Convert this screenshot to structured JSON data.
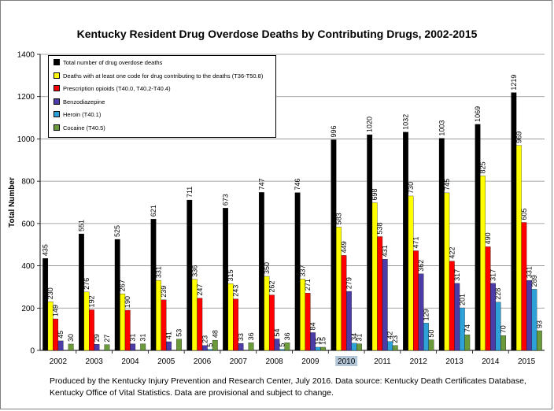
{
  "chart_data": {
    "type": "bar",
    "title": "Kentucky Resident Drug Overdose Deaths by Contributing Drugs, 2002-2015",
    "xlabel": "",
    "ylabel": "Total Number",
    "ylim": [
      0,
      1400
    ],
    "yticks": [
      0,
      200,
      400,
      600,
      800,
      1000,
      1200,
      1400
    ],
    "grid": "horizontal",
    "legend_position": "top-left",
    "highlighted_category": "2010",
    "categories": [
      "2002",
      "2003",
      "2004",
      "2005",
      "2006",
      "2007",
      "2008",
      "2009",
      "2010",
      "2011",
      "2012",
      "2013",
      "2014",
      "2015"
    ],
    "series": [
      {
        "name": "Total number of drug overdose deaths",
        "color": "#000000",
        "values": [
          435,
          551,
          525,
          621,
          711,
          673,
          747,
          746,
          996,
          1020,
          1032,
          1003,
          1069,
          1219
        ]
      },
      {
        "name": "Deaths with at least one code for drug contributing to the deaths (T36-T50.8)",
        "color": "#ffff00",
        "values": [
          230,
          276,
          267,
          331,
          336,
          315,
          350,
          337,
          583,
          698,
          730,
          745,
          825,
          969
        ]
      },
      {
        "name": "Prescription opioids (T40.0, T40.2-T40.4)",
        "color": "#ff0000",
        "values": [
          149,
          192,
          190,
          239,
          247,
          243,
          262,
          271,
          449,
          538,
          471,
          422,
          490,
          605
        ]
      },
      {
        "name": "Benzodiazepine",
        "color": "#4b3ca8",
        "values": [
          45,
          29,
          31,
          41,
          23,
          33,
          54,
          84,
          279,
          431,
          362,
          317,
          317,
          331
        ]
      },
      {
        "name": "Heroin (T40.1)",
        "color": "#2ea2d8",
        "values": [
          null,
          null,
          null,
          null,
          5,
          null,
          5,
          15,
          34,
          42,
          129,
          201,
          228,
          289
        ]
      },
      {
        "name": "Cocaine (T40.5)",
        "color": "#6b9a3a",
        "values": [
          30,
          27,
          31,
          53,
          48,
          36,
          36,
          15,
          31,
          23,
          50,
          74,
          70,
          93
        ]
      }
    ]
  },
  "footnote": "Produced by the Kentucky Injury Prevention and Research Center, July 2016. Data source: Kentucky Death Certificates Database, Kentucky Office of Vital Statistics. Data are provisional and subject to change."
}
